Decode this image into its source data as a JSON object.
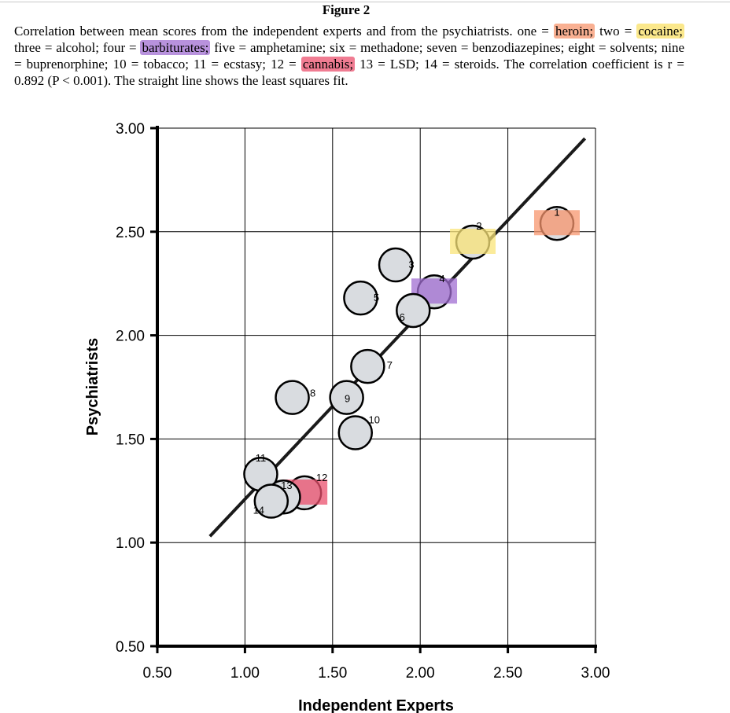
{
  "figure_title": "Figure 2",
  "caption": {
    "segments": [
      {
        "text": "Correlation between mean scores from the independent experts and from the psychiatrists. one = ",
        "hl": ""
      },
      {
        "text": "heroin;",
        "hl": "orange"
      },
      {
        "text": " two = ",
        "hl": ""
      },
      {
        "text": "cocaine;",
        "hl": "yellow"
      },
      {
        "text": " three = alcohol; four = ",
        "hl": ""
      },
      {
        "text": "barbiturates;",
        "hl": "purple"
      },
      {
        "text": " five = amphetamine; six = methadone; seven = benzodiazepines; eight = solvents; nine = buprenorphine; 10 = tobacco; 11 = ecstasy; 12 = ",
        "hl": ""
      },
      {
        "text": "cannabis;",
        "hl": "red"
      },
      {
        "text": " 13 = LSD; 14 = steroids. The correlation coefficient is r = 0.892 (P < 0.001). The straight line shows the least squares fit.",
        "hl": ""
      }
    ]
  },
  "colors": {
    "point_fill": "#d9dce0",
    "point_stroke": "#000000",
    "grid": "#000000",
    "fit_line": "#1a1a1a",
    "highlight_orange": "#f7966e",
    "highlight_yellow": "#fae478",
    "highlight_purple": "#a06ed2",
    "highlight_red": "#eb506e"
  },
  "chart_data": {
    "type": "scatter",
    "title": "",
    "xlabel": "Independent Experts",
    "ylabel": "Psychiatrists",
    "xlim": [
      0.5,
      3.0
    ],
    "ylim": [
      0.5,
      3.0
    ],
    "x_ticks": [
      "0.50",
      "1.00",
      "1.50",
      "2.00",
      "2.50",
      "3.00"
    ],
    "y_ticks": [
      "0.50",
      "1.00",
      "1.50",
      "2.00",
      "2.50",
      "3.00"
    ],
    "grid": true,
    "points": [
      {
        "label": "1",
        "x": 2.78,
        "y": 2.54,
        "highlight": "orange"
      },
      {
        "label": "2",
        "x": 2.3,
        "y": 2.45,
        "highlight": "yellow"
      },
      {
        "label": "3",
        "x": 1.86,
        "y": 2.34,
        "highlight": ""
      },
      {
        "label": "4",
        "x": 2.08,
        "y": 2.21,
        "highlight": "purple"
      },
      {
        "label": "5",
        "x": 1.66,
        "y": 2.18,
        "highlight": ""
      },
      {
        "label": "6",
        "x": 1.96,
        "y": 2.12,
        "highlight": ""
      },
      {
        "label": "7",
        "x": 1.7,
        "y": 1.85,
        "highlight": ""
      },
      {
        "label": "8",
        "x": 1.27,
        "y": 1.7,
        "highlight": ""
      },
      {
        "label": "9",
        "x": 1.58,
        "y": 1.7,
        "highlight": ""
      },
      {
        "label": "10",
        "x": 1.63,
        "y": 1.53,
        "highlight": ""
      },
      {
        "label": "11",
        "x": 1.09,
        "y": 1.33,
        "highlight": ""
      },
      {
        "label": "12",
        "x": 1.34,
        "y": 1.24,
        "highlight": "red"
      },
      {
        "label": "13",
        "x": 1.22,
        "y": 1.22,
        "highlight": ""
      },
      {
        "label": "14",
        "x": 1.15,
        "y": 1.2,
        "highlight": ""
      }
    ],
    "fit_line": {
      "x": [
        0.8,
        2.94
      ],
      "y": [
        1.03,
        2.95
      ]
    }
  }
}
